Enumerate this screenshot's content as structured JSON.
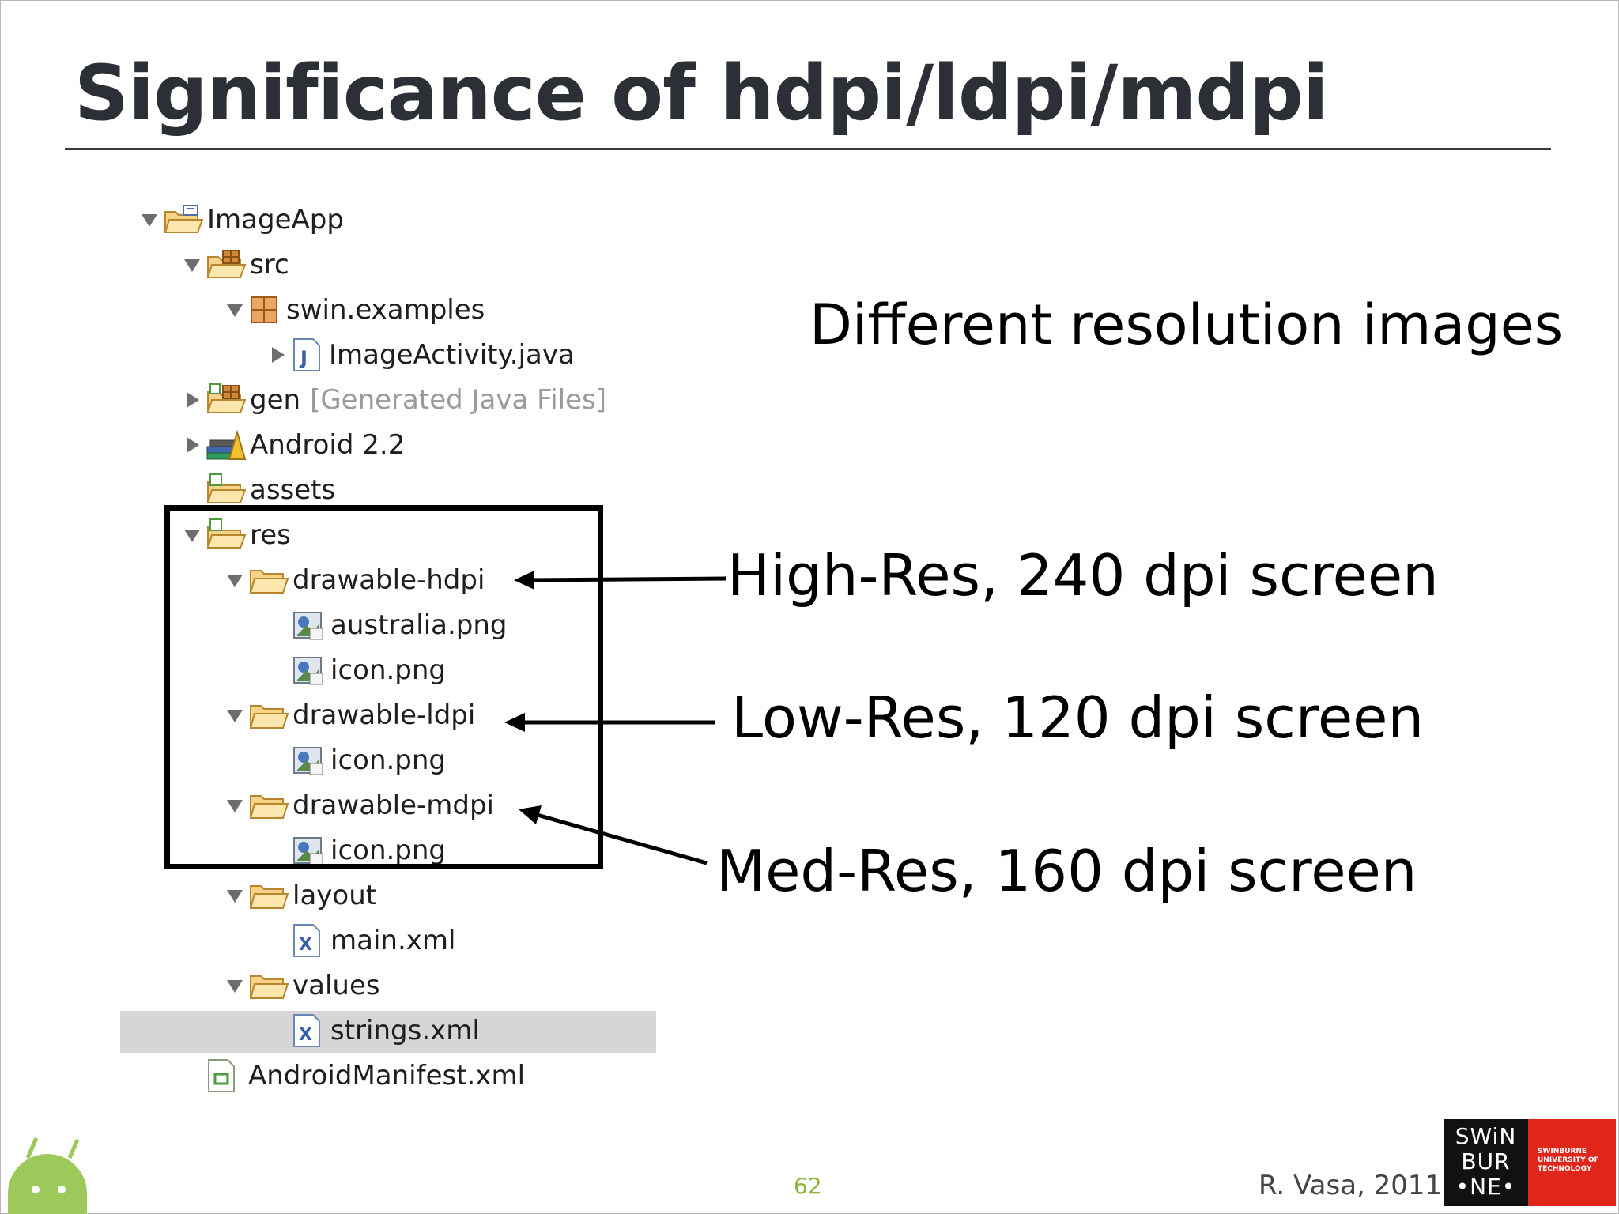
{
  "slide": {
    "title": "Significance of hdpi/ldpi/mdpi",
    "page_number": "62",
    "author": "R. Vasa, 2011"
  },
  "logo": {
    "left_lines": [
      "SWiN",
      "BUR",
      "•NE•"
    ],
    "right_lines": [
      "SWINBURNE",
      "UNIVERSITY OF",
      "TECHNOLOGY"
    ]
  },
  "annotations": {
    "different": "Different resolution images",
    "high": "High-Res, 240 dpi screen",
    "low": "Low-Res, 120 dpi screen",
    "med": "Med-Res, 160 dpi screen"
  },
  "tree": {
    "items": [
      {
        "label": "ImageApp",
        "icon": "project-folder-icon",
        "twisty": "expanded"
      },
      {
        "label": "src",
        "icon": "source-folder-icon",
        "twisty": "expanded"
      },
      {
        "label": "swin.examples",
        "icon": "package-icon",
        "twisty": "expanded"
      },
      {
        "label": "ImageActivity.java",
        "icon": "java-file-icon",
        "twisty": "collapsed"
      },
      {
        "label": "gen",
        "suffix": "[Generated Java Files]",
        "icon": "generated-folder-icon",
        "twisty": "collapsed"
      },
      {
        "label": "Android 2.2",
        "icon": "library-icon",
        "twisty": "collapsed"
      },
      {
        "label": "assets",
        "icon": "resource-folder-icon",
        "twisty": "none"
      },
      {
        "label": "res",
        "icon": "resource-folder-icon",
        "twisty": "expanded"
      },
      {
        "label": "drawable-hdpi",
        "icon": "folder-icon",
        "twisty": "expanded"
      },
      {
        "label": "australia.png",
        "icon": "image-file-icon",
        "twisty": "none"
      },
      {
        "label": "icon.png",
        "icon": "image-file-icon",
        "twisty": "none"
      },
      {
        "label": "drawable-ldpi",
        "icon": "folder-icon",
        "twisty": "expanded"
      },
      {
        "label": "icon.png",
        "icon": "image-file-icon",
        "twisty": "none"
      },
      {
        "label": "drawable-mdpi",
        "icon": "folder-icon",
        "twisty": "expanded"
      },
      {
        "label": "icon.png",
        "icon": "image-file-icon",
        "twisty": "none"
      },
      {
        "label": "layout",
        "icon": "folder-icon",
        "twisty": "expanded"
      },
      {
        "label": "main.xml",
        "icon": "xml-file-icon",
        "twisty": "none"
      },
      {
        "label": "values",
        "icon": "folder-icon",
        "twisty": "expanded"
      },
      {
        "label": "strings.xml",
        "icon": "xml-file-icon",
        "twisty": "none",
        "selected": true
      },
      {
        "label": "AndroidManifest.xml",
        "icon": "manifest-file-icon",
        "twisty": "none"
      }
    ]
  },
  "colors": {
    "title": "#2c2f36",
    "page_number": "#8db33a",
    "selection": "#d6d5d8",
    "logo_red": "#e0251b"
  }
}
